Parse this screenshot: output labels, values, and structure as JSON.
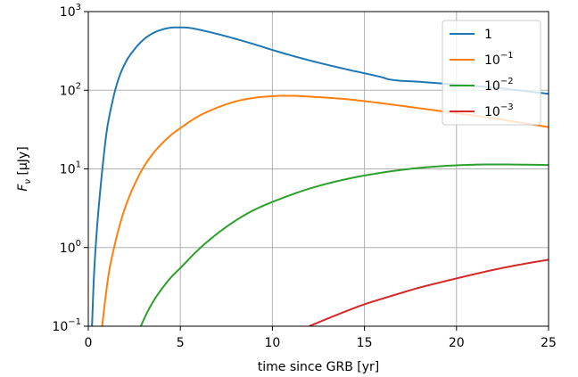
{
  "chart_data": {
    "type": "line",
    "title": "",
    "xlabel": "time since GRB [yr]",
    "ylabel_main": "F",
    "ylabel_sub": "ν",
    "ylabel_unit": " [μJy]",
    "xlim": [
      0,
      25
    ],
    "ylim": [
      0.1,
      1000
    ],
    "yscale": "log",
    "grid": true,
    "legend_position": "top-right",
    "x_ticks": [
      {
        "value": 0,
        "label": "0"
      },
      {
        "value": 5,
        "label": "5"
      },
      {
        "value": 10,
        "label": "10"
      },
      {
        "value": 15,
        "label": "15"
      },
      {
        "value": 20,
        "label": "20"
      },
      {
        "value": 25,
        "label": "25"
      }
    ],
    "y_ticks": [
      {
        "value": 0.1,
        "base": "10",
        "exp": "−1"
      },
      {
        "value": 1,
        "base": "10",
        "exp": "0"
      },
      {
        "value": 10,
        "base": "10",
        "exp": "1"
      },
      {
        "value": 100,
        "base": "10",
        "exp": "2"
      },
      {
        "value": 1000,
        "base": "10",
        "exp": "3"
      }
    ],
    "series": [
      {
        "name_base": "1",
        "name_exp": "",
        "color": "#1f77b4",
        "x": [
          0.2,
          0.3,
          0.45,
          0.6,
          0.8,
          1.0,
          1.3,
          1.6,
          2.0,
          2.5,
          3.0,
          3.5,
          4.0,
          4.5,
          5.0,
          5.5,
          6.0,
          7.0,
          8.0,
          9.0,
          10.0,
          12.0,
          14.0,
          16.0,
          16.3,
          18.0,
          20.0,
          22.0,
          24.0,
          25.0
        ],
        "y": [
          0.1,
          0.4,
          1.5,
          4.0,
          12.0,
          30.0,
          70.0,
          130.0,
          220.0,
          330.0,
          440.0,
          530.0,
          590.0,
          625.0,
          630.0,
          620.0,
          590.0,
          520.0,
          450.0,
          385.0,
          325.0,
          240.0,
          185.0,
          145.0,
          138.0,
          128.0,
          118.0,
          108.0,
          96.0,
          90.0
        ]
      },
      {
        "name_base": "10",
        "name_exp": "−1",
        "color": "#ff7f0e",
        "x": [
          0.75,
          0.9,
          1.1,
          1.4,
          1.8,
          2.2,
          2.6,
          3.0,
          3.5,
          4.0,
          4.5,
          5.0,
          6.0,
          7.0,
          8.0,
          9.0,
          10.0,
          10.5,
          11.0,
          12.0,
          14.0,
          16.0,
          18.0,
          20.0,
          22.0,
          24.0,
          25.0
        ],
        "y": [
          0.1,
          0.2,
          0.45,
          1.0,
          2.3,
          4.3,
          7.0,
          10.5,
          15.5,
          21.0,
          27.0,
          33.0,
          47.0,
          60.0,
          72.0,
          80.0,
          84.0,
          85.0,
          85.0,
          83.0,
          77.0,
          68.0,
          59.0,
          51.0,
          44.0,
          37.0,
          34.0
        ]
      },
      {
        "name_base": "10",
        "name_exp": "−2",
        "color": "#2ca02c",
        "x": [
          2.85,
          3.2,
          3.6,
          4.0,
          4.5,
          5.0,
          6.0,
          7.0,
          8.0,
          9.0,
          10.0,
          12.0,
          14.0,
          16.0,
          18.0,
          20.0,
          22.0,
          24.0,
          25.0
        ],
        "y": [
          0.1,
          0.15,
          0.22,
          0.3,
          0.42,
          0.55,
          0.95,
          1.5,
          2.2,
          3.0,
          3.8,
          5.6,
          7.4,
          9.0,
          10.3,
          11.1,
          11.4,
          11.3,
          11.2
        ]
      },
      {
        "name_base": "10",
        "name_exp": "−3",
        "color": "#d62728",
        "x": [
          12.0,
          13.0,
          14.0,
          15.0,
          16.0,
          17.0,
          18.0,
          19.0,
          20.0,
          21.0,
          22.0,
          23.0,
          24.0,
          25.0
        ],
        "y": [
          0.1,
          0.125,
          0.155,
          0.19,
          0.225,
          0.265,
          0.31,
          0.355,
          0.405,
          0.46,
          0.52,
          0.58,
          0.64,
          0.7
        ]
      }
    ]
  }
}
